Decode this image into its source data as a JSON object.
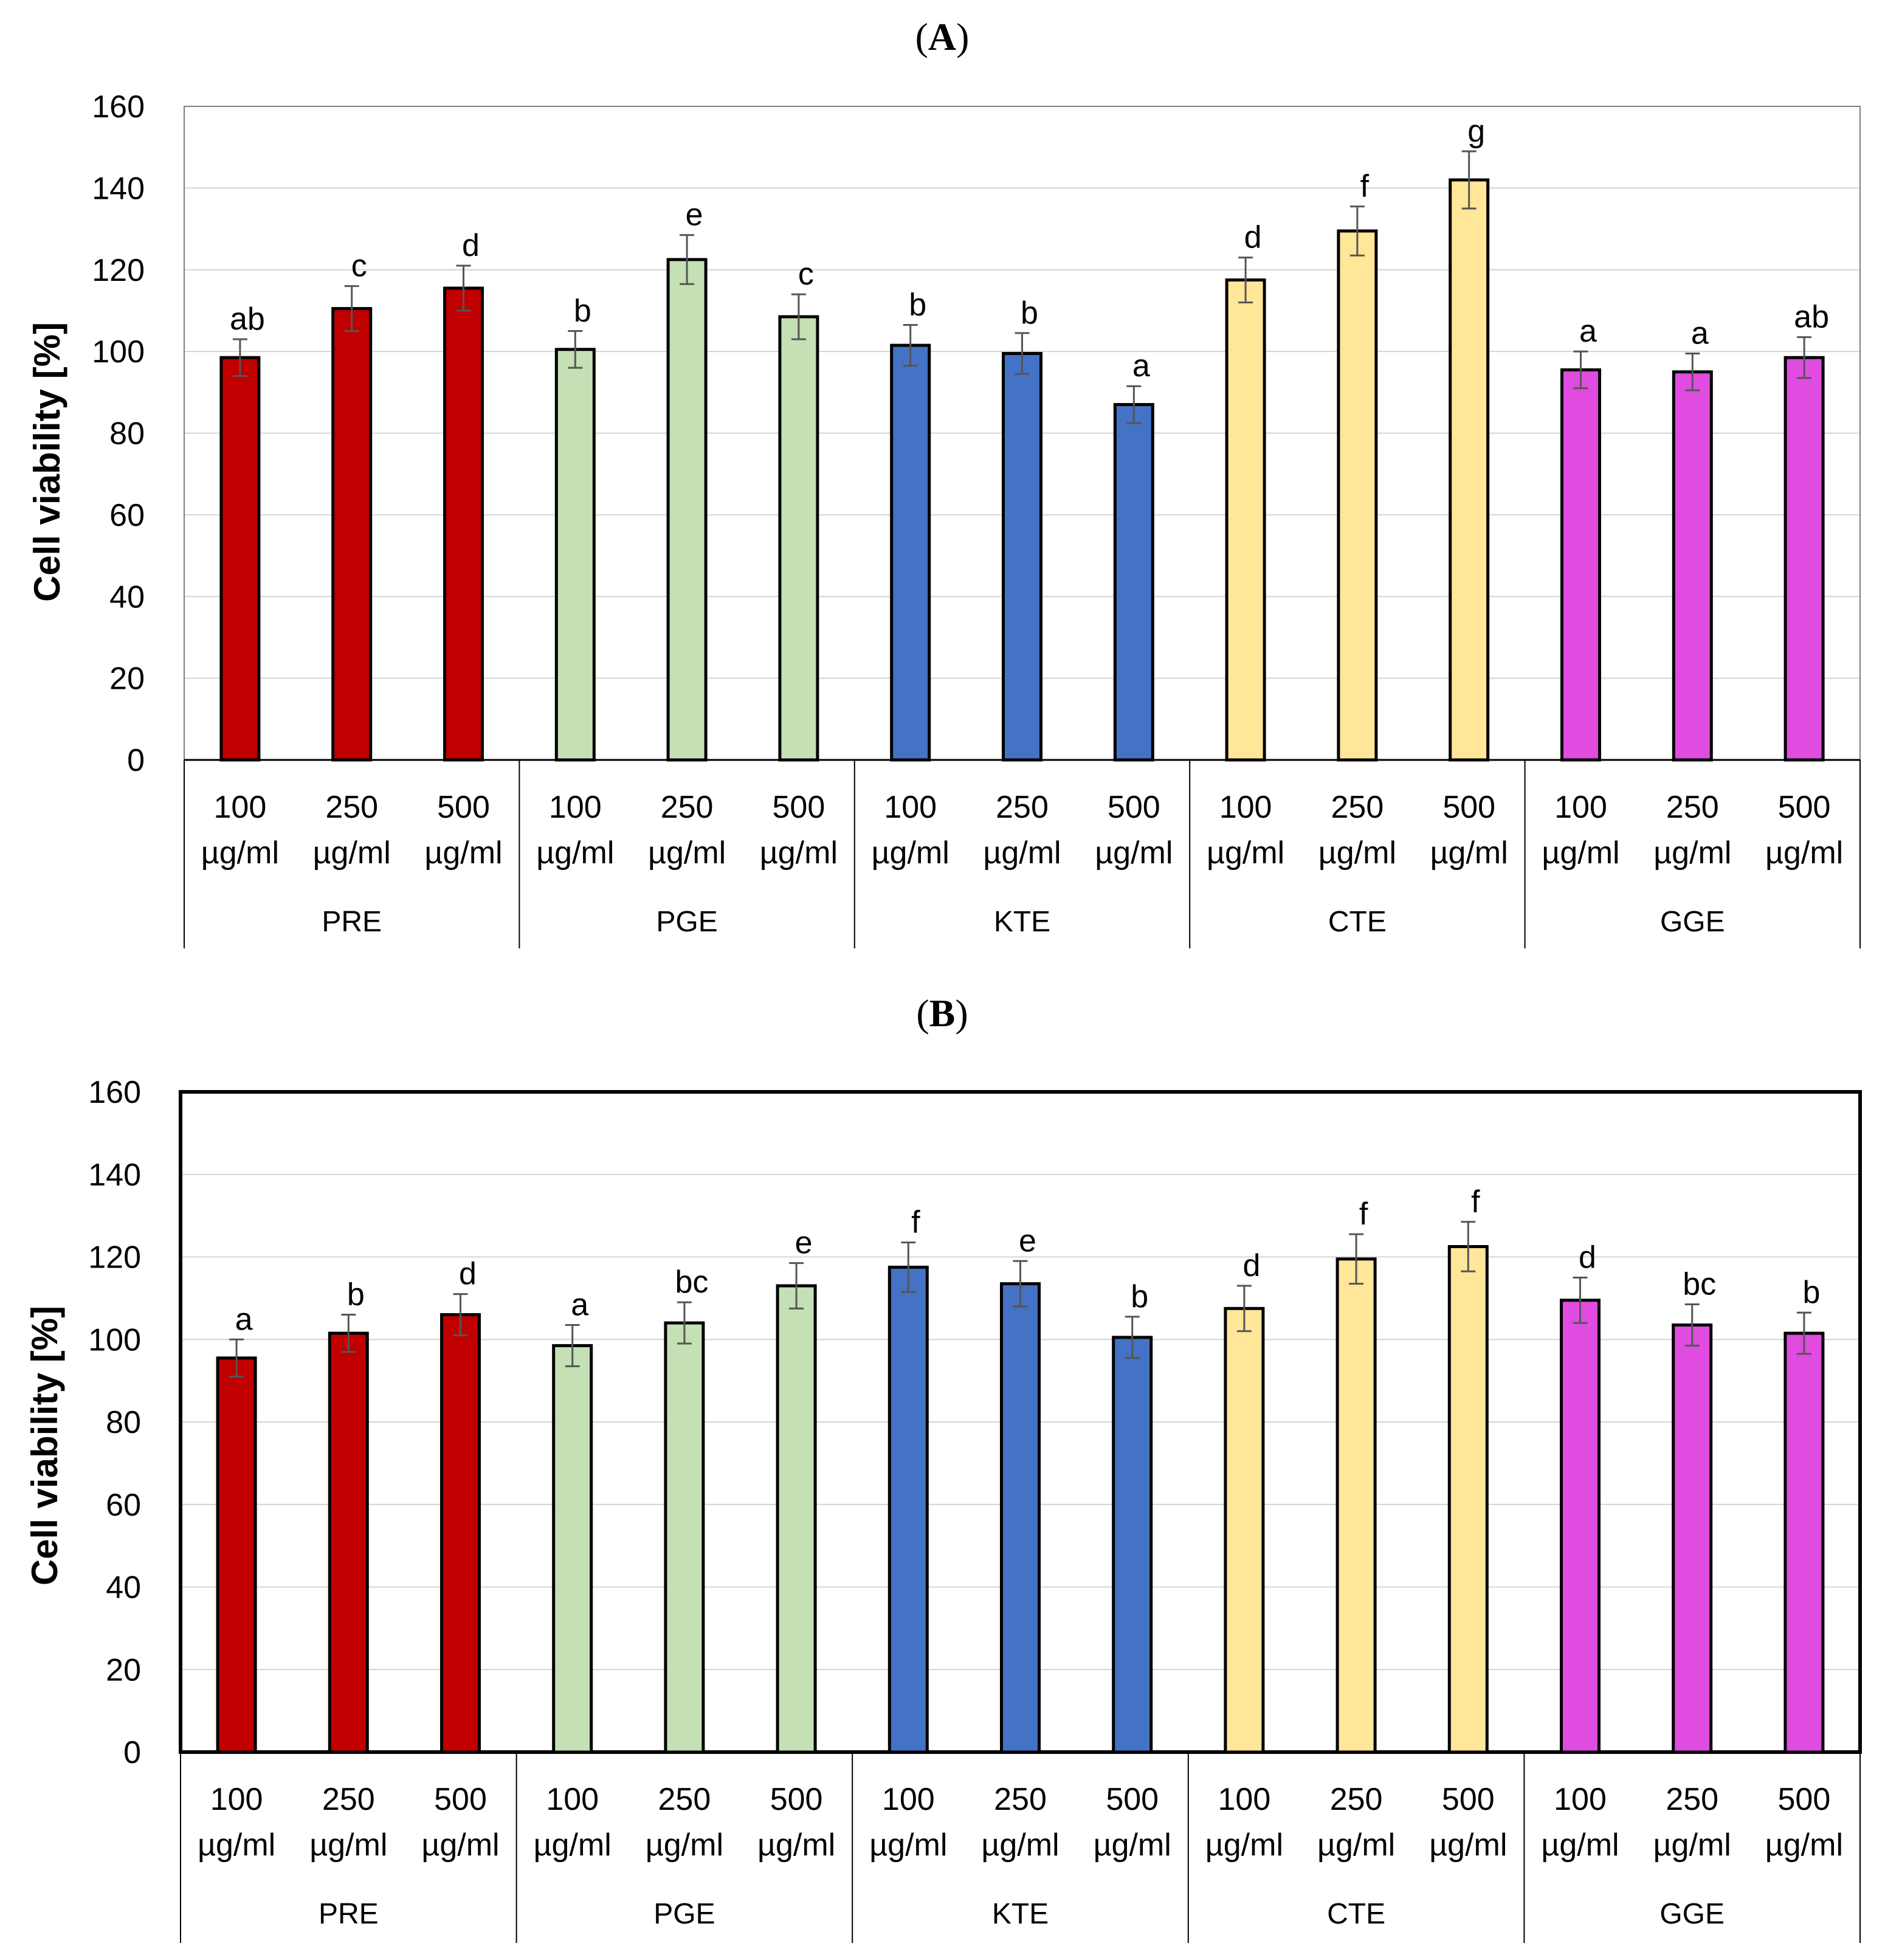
{
  "chart_data": [
    {
      "type": "bar",
      "panel": "A",
      "title_parts": [
        "(",
        "A",
        ")"
      ],
      "ylabel": "Cell viability [%]",
      "ylim": [
        0,
        160
      ],
      "yticks": [
        "0",
        "20",
        "40",
        "60",
        "80",
        "100",
        "120",
        "140",
        "160"
      ],
      "categories": [
        [
          "100",
          "µg/ml"
        ],
        [
          "250",
          "µg/ml"
        ],
        [
          "500",
          "µg/ml"
        ],
        [
          "100",
          "µg/ml"
        ],
        [
          "250",
          "µg/ml"
        ],
        [
          "500",
          "µg/ml"
        ],
        [
          "100",
          "µg/ml"
        ],
        [
          "250",
          "µg/ml"
        ],
        [
          "500",
          "µg/ml"
        ],
        [
          "100",
          "µg/ml"
        ],
        [
          "250",
          "µg/ml"
        ],
        [
          "500",
          "µg/ml"
        ],
        [
          "100",
          "µg/ml"
        ],
        [
          "250",
          "µg/ml"
        ],
        [
          "500",
          "µg/ml"
        ]
      ],
      "groups": [
        "PRE",
        "PGE",
        "KTE",
        "CTE",
        "GGE"
      ],
      "group_colors": [
        "#c00000",
        "#c5e0b4",
        "#4472c4",
        "#ffe699",
        "#e04be0"
      ],
      "values": [
        98.5,
        110.5,
        115.5,
        100.5,
        122.5,
        108.5,
        101.5,
        99.5,
        87,
        117.5,
        129.5,
        142,
        95.5,
        95,
        98.5
      ],
      "errors": [
        4.5,
        5.5,
        5.5,
        4.5,
        6,
        5.5,
        5,
        5,
        4.5,
        5.5,
        6,
        7,
        4.5,
        4.5,
        5
      ],
      "significance": [
        "ab",
        "c",
        "d",
        "b",
        "e",
        "c",
        "b",
        "b",
        "a",
        "d",
        "f",
        "g",
        "a",
        "a",
        "ab"
      ]
    },
    {
      "type": "bar",
      "panel": "B",
      "title_parts": [
        "(",
        "B",
        ")"
      ],
      "ylabel": "Cell viability [%]",
      "ylim": [
        0,
        160
      ],
      "yticks": [
        "0",
        "20",
        "40",
        "60",
        "80",
        "100",
        "120",
        "140",
        "160"
      ],
      "categories": [
        [
          "100",
          "µg/ml"
        ],
        [
          "250",
          "µg/ml"
        ],
        [
          "500",
          "µg/ml"
        ],
        [
          "100",
          "µg/ml"
        ],
        [
          "250",
          "µg/ml"
        ],
        [
          "500",
          "µg/ml"
        ],
        [
          "100",
          "µg/ml"
        ],
        [
          "250",
          "µg/ml"
        ],
        [
          "500",
          "µg/ml"
        ],
        [
          "100",
          "µg/ml"
        ],
        [
          "250",
          "µg/ml"
        ],
        [
          "500",
          "µg/ml"
        ],
        [
          "100",
          "µg/ml"
        ],
        [
          "250",
          "µg/ml"
        ],
        [
          "500",
          "µg/ml"
        ]
      ],
      "groups": [
        "PRE",
        "PGE",
        "KTE",
        "CTE",
        "GGE"
      ],
      "group_colors": [
        "#c00000",
        "#c5e0b4",
        "#4472c4",
        "#ffe699",
        "#e04be0"
      ],
      "values": [
        95.5,
        101.5,
        106,
        98.5,
        104,
        113,
        117.5,
        113.5,
        100.5,
        107.5,
        119.5,
        122.5,
        109.5,
        103.5,
        101.5
      ],
      "errors": [
        4.5,
        4.5,
        5,
        5,
        5,
        5.5,
        6,
        5.5,
        5,
        5.5,
        6,
        6,
        5.5,
        5,
        5
      ],
      "significance": [
        "a",
        "b",
        "d",
        "a",
        "bc",
        "e",
        "f",
        "e",
        "b",
        "d",
        "f",
        "f",
        "d",
        "bc",
        "b"
      ]
    }
  ]
}
